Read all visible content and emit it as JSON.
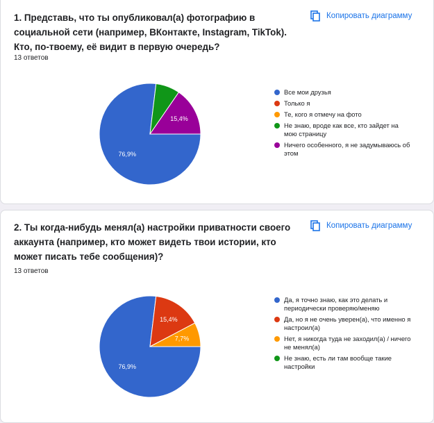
{
  "chart_data": [
    {
      "type": "pie",
      "title": "1. Представь, что ты опубликовал(а) фотографию в социальной сети (например, ВКонтакте, Instagram, TikTok). Кто, по-твоему, её видит в первую очередь?",
      "subtitle": "13 ответов",
      "button": "Копировать диаграмму",
      "categories": [
        "Все мои друзья",
        "Только я",
        "Те, кого я отмечу на фото",
        "Не знаю, вроде как все, кто зайдет на мою страницу",
        "Ничего особенного, я не задумываюсь об этом"
      ],
      "values": [
        76.9,
        0,
        0,
        7.7,
        15.4
      ],
      "value_labels": [
        "76,9%",
        null,
        null,
        null,
        "15,4%"
      ],
      "colors": [
        "#3366cc",
        "#dc3912",
        "#ff9900",
        "#109618",
        "#990099"
      ]
    },
    {
      "type": "pie",
      "title": "2. Ты когда-нибудь менял(а) настройки приватности своего аккаунта (например, кто может видеть твои истории, кто может писать тебе сообщения)?",
      "subtitle": "13 ответов",
      "button": "Копировать диаграмму",
      "categories": [
        "Да, я точно знаю, как это делать и периодически проверяю/меняю",
        "Да, но я не очень уверен(а), что именно я настроил(а)",
        "Нет, я никогда туда не заходил(а) / ничего не менял(а)",
        "Не знаю, есть ли там вообще такие настройки"
      ],
      "values": [
        76.9,
        15.4,
        7.7,
        0
      ],
      "value_labels": [
        "76,9%",
        "15,4%",
        "7,7%",
        null
      ],
      "colors": [
        "#3366cc",
        "#dc3912",
        "#ff9900",
        "#109618"
      ]
    }
  ]
}
